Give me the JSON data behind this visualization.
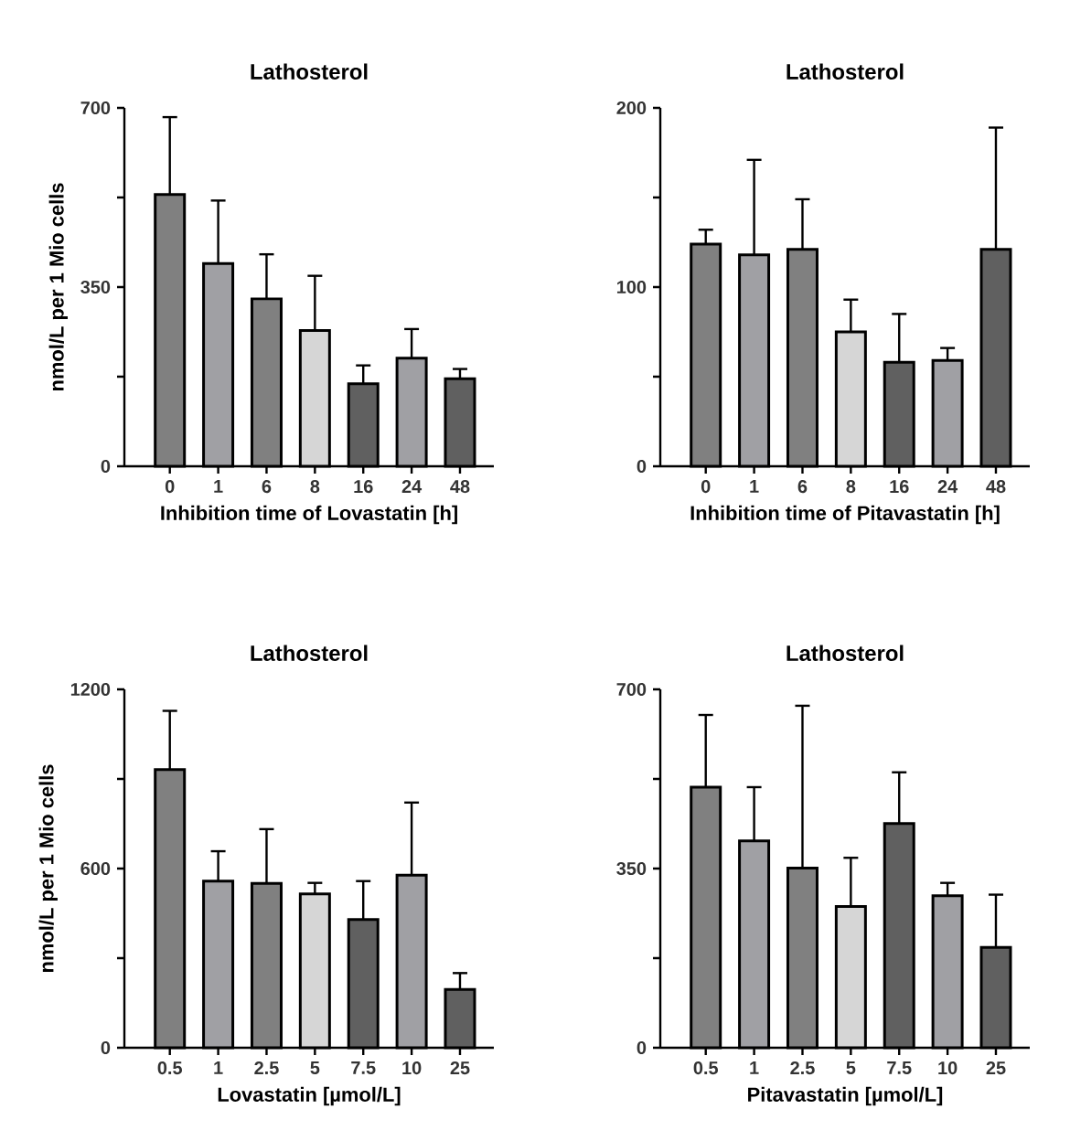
{
  "chart_data": [
    {
      "type": "bar",
      "title": "Lathosterol",
      "xlabel": "Inhibition time of Lovastatin [h]",
      "ylabel": "nmol/L per 1 Mio cells",
      "categories": [
        "0",
        "1",
        "6",
        "8",
        "16",
        "24",
        "48"
      ],
      "values": [
        531,
        396,
        327,
        265,
        161,
        211,
        171
      ],
      "errors": [
        151,
        123,
        87,
        107,
        36,
        57,
        19
      ],
      "colors": [
        "#808080",
        "#a0a0a4",
        "#808080",
        "#d6d6d6",
        "#606060",
        "#a0a0a4",
        "#606060"
      ],
      "ylim": [
        0,
        700
      ],
      "yticks": [
        0,
        {
          "value": 175,
          "label": null
        },
        350,
        {
          "value": 525,
          "label": null
        },
        700
      ]
    },
    {
      "type": "bar",
      "title": "Lathosterol",
      "xlabel": "Inhibition time of Pitavastatin [h]",
      "categories": [
        "0",
        "1",
        "6",
        "8",
        "16",
        "24",
        "48"
      ],
      "values": [
        124,
        118,
        121,
        75,
        58,
        59,
        121
      ],
      "errors": [
        8,
        53,
        28,
        18,
        27,
        7,
        68
      ],
      "colors": [
        "#808080",
        "#a0a0a4",
        "#808080",
        "#d6d6d6",
        "#606060",
        "#a0a0a4",
        "#606060"
      ],
      "ylim": [
        0,
        200
      ],
      "yticks": [
        0,
        {
          "value": 50,
          "label": null
        },
        100,
        {
          "value": 150,
          "label": null
        },
        200
      ]
    },
    {
      "type": "bar",
      "title": "Lathosterol",
      "xlabel": "Lovastatin [µmol/L]",
      "ylabel": "nmol/L per 1 Mio cells",
      "categories": [
        "0.5",
        "1",
        "2.5",
        "5",
        "7.5",
        "10",
        "25"
      ],
      "values": [
        931,
        558,
        550,
        515,
        429,
        578,
        195
      ],
      "errors": [
        197,
        100,
        182,
        37,
        129,
        243,
        55
      ],
      "colors": [
        "#808080",
        "#a0a0a4",
        "#808080",
        "#d6d6d6",
        "#606060",
        "#a0a0a4",
        "#606060"
      ],
      "ylim": [
        0,
        1200
      ],
      "yticks": [
        0,
        {
          "value": 300,
          "label": null
        },
        600,
        {
          "value": 900,
          "label": null
        },
        1200
      ]
    },
    {
      "type": "bar",
      "title": "Lathosterol",
      "xlabel": "Pitavastatin [µmol/L]",
      "categories": [
        "0.5",
        "1",
        "2.5",
        "5",
        "7.5",
        "10",
        "25"
      ],
      "values": [
        509,
        404,
        351,
        276,
        438,
        297,
        196
      ],
      "errors": [
        141,
        105,
        317,
        95,
        100,
        25,
        103
      ],
      "colors": [
        "#808080",
        "#a0a0a4",
        "#808080",
        "#d6d6d6",
        "#606060",
        "#a0a0a4",
        "#606060"
      ],
      "ylim": [
        0,
        700
      ],
      "yticks": [
        0,
        {
          "value": 175,
          "label": null
        },
        350,
        {
          "value": 525,
          "label": null
        },
        700
      ]
    }
  ]
}
